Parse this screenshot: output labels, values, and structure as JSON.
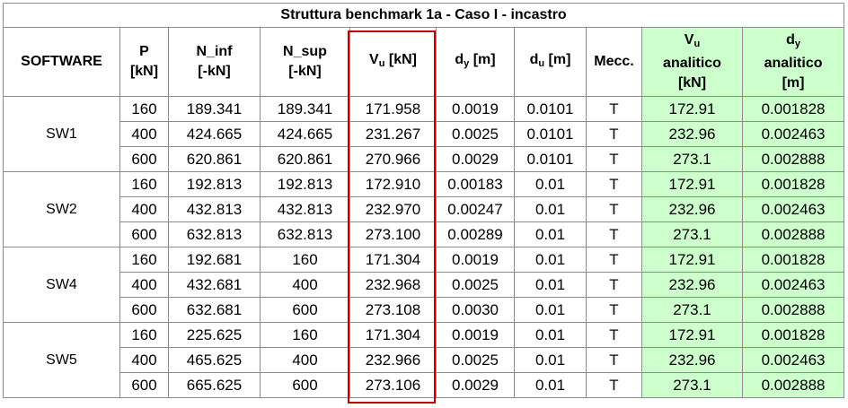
{
  "title": "Struttura benchmark 1a - Caso I - incastro",
  "headers": {
    "software": "SOFTWARE",
    "p": [
      "P",
      "[kN]"
    ],
    "n_inf": [
      "N_inf",
      "[-kN]"
    ],
    "n_sup": [
      "N_sup",
      "[-kN]"
    ],
    "vu": {
      "main": "V",
      "sub": "u",
      "unit": " [kN]"
    },
    "dy": {
      "main": "d",
      "sub": "y",
      "unit": " [m]"
    },
    "du": {
      "main": "d",
      "sub": "u",
      "unit": " [m]"
    },
    "mecc": "Mecc.",
    "vu_analitico": {
      "main": "V",
      "sub": "u",
      "line2": "analitico",
      "line3": "[kN]"
    },
    "dy_analitico": {
      "main": "d",
      "sub": "y",
      "line2": "analitico",
      "line3": "[m]"
    }
  },
  "groups": [
    {
      "software": "SW1",
      "rows": [
        [
          "160",
          "189.341",
          "189.341",
          "171.958",
          "0.0019",
          "0.0101",
          "T",
          "172.91",
          "0.001828"
        ],
        [
          "400",
          "424.665",
          "424.665",
          "231.267",
          "0.0025",
          "0.0101",
          "T",
          "232.96",
          "0.002463"
        ],
        [
          "600",
          "620.861",
          "620.861",
          "270.966",
          "0.0029",
          "0.0101",
          "T",
          "273.1",
          "0.002888"
        ]
      ]
    },
    {
      "software": "SW2",
      "rows": [
        [
          "160",
          "192.813",
          "192.813",
          "172.910",
          "0.00183",
          "0.01",
          "T",
          "172.91",
          "0.001828"
        ],
        [
          "400",
          "432.813",
          "432.813",
          "232.970",
          "0.00247",
          "0.01",
          "T",
          "232.96",
          "0.002463"
        ],
        [
          "600",
          "632.813",
          "632.813",
          "273.100",
          "0.00289",
          "0.01",
          "T",
          "273.1",
          "0.002888"
        ]
      ]
    },
    {
      "software": "SW4",
      "rows": [
        [
          "160",
          "192.681",
          "160",
          "171.304",
          "0.0019",
          "0.01",
          "T",
          "172.91",
          "0.001828"
        ],
        [
          "400",
          "432.681",
          "400",
          "232.968",
          "0.0025",
          "0.01",
          "T",
          "232.96",
          "0.002463"
        ],
        [
          "600",
          "632.681",
          "600",
          "273.108",
          "0.0030",
          "0.01",
          "T",
          "273.1",
          "0.002888"
        ]
      ]
    },
    {
      "software": "SW5",
      "rows": [
        [
          "160",
          "225.625",
          "160",
          "171.304",
          "0.0019",
          "0.01",
          "T",
          "172.91",
          "0.001828"
        ],
        [
          "400",
          "465.625",
          "400",
          "232.966",
          "0.0025",
          "0.01",
          "T",
          "232.96",
          "0.002463"
        ],
        [
          "600",
          "665.625",
          "600",
          "273.106",
          "0.0029",
          "0.01",
          "T",
          "273.1",
          "0.002888"
        ]
      ]
    }
  ],
  "colors": {
    "analytic_fill": "#ccffcc",
    "highlight": "#c00000",
    "grid": "#8c8c8c"
  }
}
